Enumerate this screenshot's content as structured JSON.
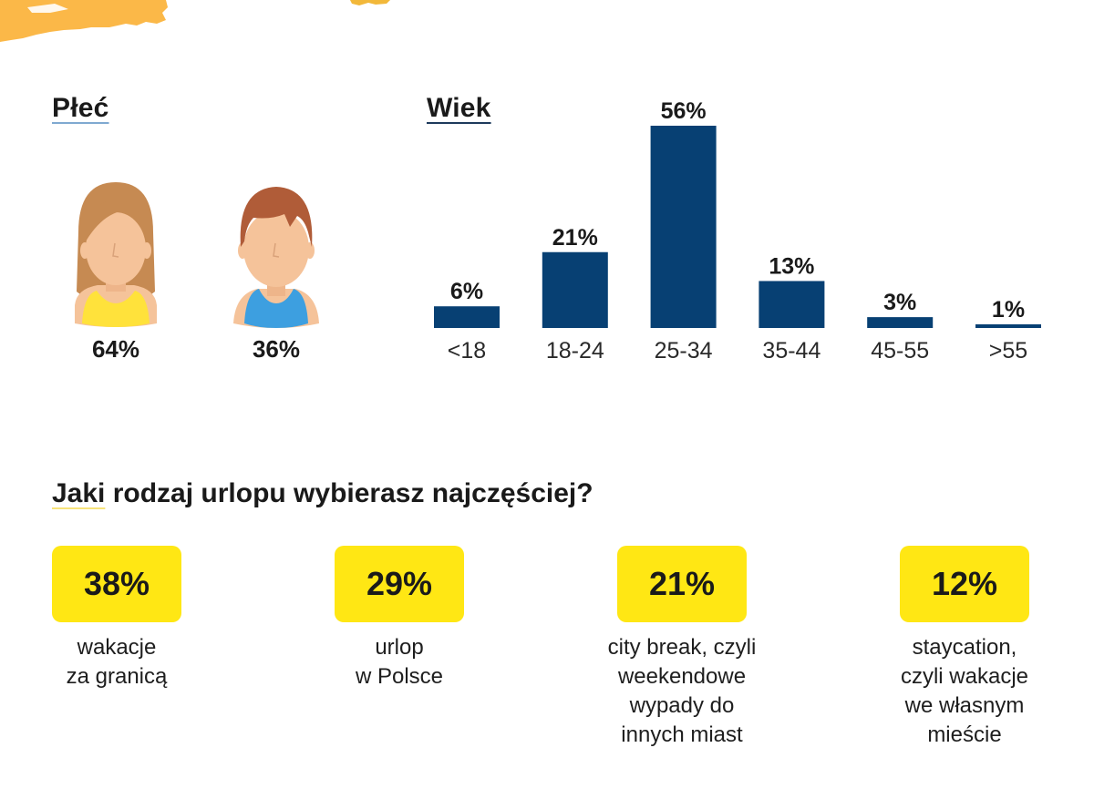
{
  "colors": {
    "bar": "#074073",
    "badge": "#ffe714",
    "decoration": "#fbb848",
    "text": "#1a1a1a"
  },
  "gender": {
    "title": "Płeć",
    "female": {
      "icon": "woman-avatar-icon",
      "percent": "64%"
    },
    "male": {
      "icon": "man-avatar-icon",
      "percent": "36%"
    }
  },
  "age": {
    "title": "Wiek"
  },
  "chart_data": {
    "type": "bar",
    "title": "Wiek",
    "xlabel": "",
    "ylabel": "",
    "categories": [
      "<18",
      "18-24",
      "25-34",
      "35-44",
      "45-55",
      ">55"
    ],
    "values": [
      6,
      21,
      56,
      13,
      3,
      1
    ],
    "value_labels": [
      "6%",
      "21%",
      "56%",
      "13%",
      "3%",
      "1%"
    ],
    "unit": "%",
    "ylim": [
      0,
      56
    ],
    "grid": false,
    "legend": "none"
  },
  "vacation": {
    "question": "Jaki rodzaj urlopu wybierasz najczęściej?",
    "question_first_word": "Jaki",
    "question_rest": " rodzaj urlopu wybierasz najczęściej?",
    "options": [
      {
        "percent": "38%",
        "lines": [
          "wakacje",
          "za granicą"
        ]
      },
      {
        "percent": "29%",
        "lines": [
          "urlop",
          "w Polsce"
        ]
      },
      {
        "percent": "21%",
        "lines": [
          "city break, czyli",
          "weekendowe",
          "wypady do",
          "innych miast"
        ]
      },
      {
        "percent": "12%",
        "lines": [
          "staycation,",
          "czyli wakacje",
          "we własnym",
          "mieście"
        ]
      }
    ]
  }
}
